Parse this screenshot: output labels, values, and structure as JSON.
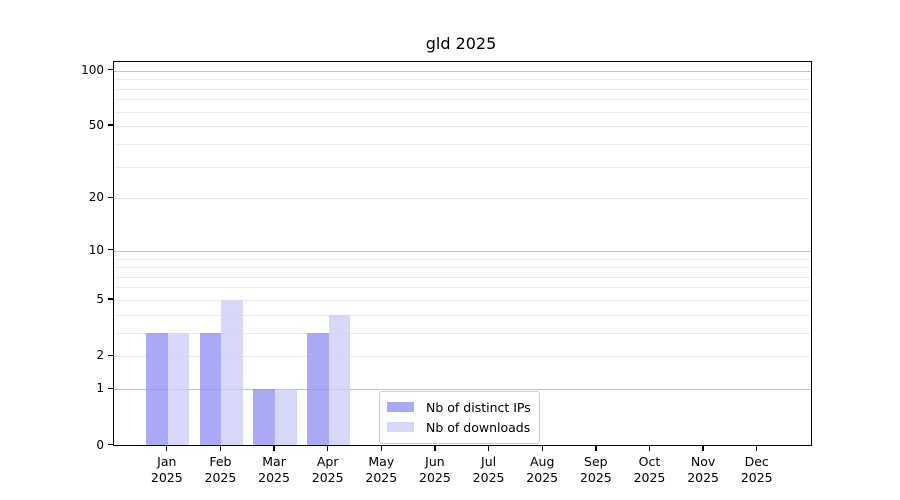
{
  "figure": {
    "background": "#ffffff"
  },
  "chart_data": {
    "type": "bar",
    "title": "gld 2025",
    "categories": [
      {
        "month": "Jan",
        "year": "2025"
      },
      {
        "month": "Feb",
        "year": "2025"
      },
      {
        "month": "Mar",
        "year": "2025"
      },
      {
        "month": "Apr",
        "year": "2025"
      },
      {
        "month": "May",
        "year": "2025"
      },
      {
        "month": "Jun",
        "year": "2025"
      },
      {
        "month": "Jul",
        "year": "2025"
      },
      {
        "month": "Aug",
        "year": "2025"
      },
      {
        "month": "Sep",
        "year": "2025"
      },
      {
        "month": "Oct",
        "year": "2025"
      },
      {
        "month": "Nov",
        "year": "2025"
      },
      {
        "month": "Dec",
        "year": "2025"
      }
    ],
    "series": [
      {
        "name": "Nb of distinct IPs",
        "color": "#9191f4",
        "alpha": 0.78,
        "values": [
          3,
          3,
          1,
          3,
          0,
          0,
          0,
          0,
          0,
          0,
          0,
          0
        ]
      },
      {
        "name": "Nb of downloads",
        "color": "#ccccf7",
        "alpha": 0.78,
        "values": [
          3,
          5,
          1,
          4,
          0,
          0,
          0,
          0,
          0,
          0,
          0,
          0
        ]
      }
    ],
    "y_axis": {
      "scale": "log10(1+y)",
      "tick_labels": [
        "0",
        "1",
        "2",
        "5",
        "10",
        "20",
        "50",
        "100"
      ],
      "tick_values": [
        0,
        1,
        2,
        5,
        10,
        20,
        50,
        100
      ],
      "ylim": [
        0,
        110
      ],
      "major_gridlines": [
        1,
        10,
        100
      ],
      "minor_gridlines": [
        2,
        3,
        4,
        5,
        6,
        7,
        8,
        9,
        20,
        30,
        40,
        50,
        60,
        70,
        80,
        90
      ],
      "major_gridline_color": "#c3c3c3",
      "minor_gridline_color": "#ebebeb"
    },
    "legend": {
      "position": "lower-center"
    }
  }
}
